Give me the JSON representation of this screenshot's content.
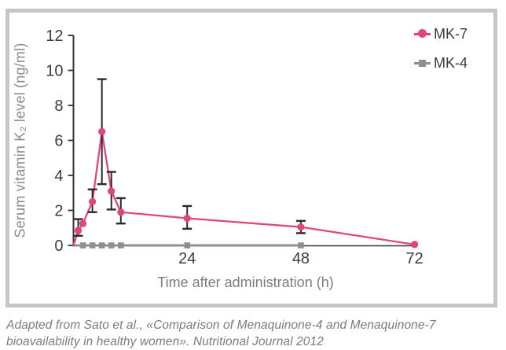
{
  "figure": {
    "legend": [
      {
        "label": "MK-7",
        "series": "mk7"
      },
      {
        "label": "MK-4",
        "series": "mk4"
      }
    ],
    "caption_line1": "Adapted from Sato et al., «Comparison of Menaquinone-4 and Menaquinone-7",
    "caption_line2": "bioavailability in healthy women». Nutritional Journal 2012"
  },
  "chart_data": {
    "type": "line",
    "title": "",
    "xlabel": "Time after administration (h)",
    "ylabel": "Serum vitamin K₂ level (ng/ml)",
    "xlim": [
      0,
      72
    ],
    "ylim": [
      0,
      12
    ],
    "xticks": [
      24,
      48,
      72
    ],
    "yticks": [
      0,
      2,
      4,
      6,
      8,
      10,
      12
    ],
    "grid": false,
    "legend_position": "top-right",
    "series": [
      {
        "name": "MK-7",
        "color": "#e0457f",
        "marker": "circle",
        "x": [
          0,
          1,
          2,
          4,
          6,
          8,
          10,
          24,
          48,
          72
        ],
        "y": [
          0,
          0.85,
          1.25,
          2.5,
          6.5,
          3.1,
          1.9,
          1.55,
          1.05,
          0.05
        ],
        "err": [
          null,
          [
            0.55,
            1.5
          ],
          null,
          [
            1.9,
            3.2
          ],
          [
            3.5,
            9.5
          ],
          [
            2.05,
            4.2
          ],
          [
            1.25,
            2.7
          ],
          [
            0.95,
            2.25
          ],
          [
            0.7,
            1.4
          ],
          null
        ]
      },
      {
        "name": "MK-4",
        "color": "#8f8f8f",
        "marker": "square",
        "x": [
          0,
          2,
          4,
          6,
          8,
          10,
          24,
          48
        ],
        "y": [
          0,
          0,
          0,
          0,
          0,
          0,
          0,
          0
        ],
        "err": [
          null,
          null,
          null,
          null,
          null,
          null,
          null,
          null
        ]
      }
    ]
  },
  "colors": {
    "mk7_pink": "#e0457f",
    "mk4_gray": "#8f8f8f",
    "axis": "#333333",
    "error_bar": "#2b2b2b",
    "tick_label": "#3c3c3c",
    "axis_title": "#7d7d7d",
    "y_axis_title": "#8a8a8a",
    "legend_text": "#3a3a3a",
    "frame_border": "#c6c6c6",
    "caption_text": "#7b7b7b"
  }
}
